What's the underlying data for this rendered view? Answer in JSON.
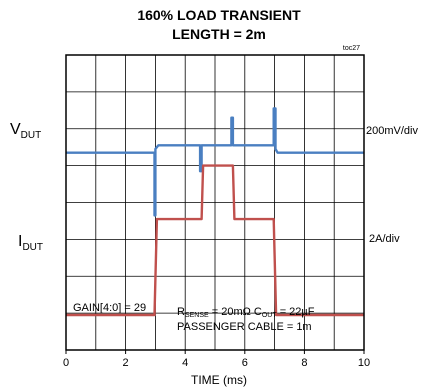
{
  "chart_data": {
    "type": "line",
    "title": "160% LOAD TRANSIENT",
    "subtitle": "LENGTH = 2m",
    "tag": "toc27",
    "xlabel": "TIME (ms)",
    "xlim": [
      0,
      10
    ],
    "x_ticks": [
      "0",
      "2",
      "4",
      "6",
      "8",
      "10"
    ],
    "grid": true,
    "y_divisions": 8,
    "channels": [
      {
        "label_main": "V",
        "label_sub": "DUT",
        "scale": "200mV/div",
        "color": "#4a7fc1",
        "baseline_div": 5.35,
        "x": [
          0,
          2.97,
          2.97,
          3.0,
          3.0,
          3.1,
          3.2,
          4.5,
          4.5,
          4.55,
          4.55,
          5.55,
          5.55,
          5.6,
          5.6,
          6.97,
          6.97,
          7.03,
          7.03,
          7.1,
          10
        ],
        "y_div": [
          5.35,
          5.35,
          3.65,
          3.65,
          5.45,
          5.55,
          5.55,
          5.55,
          4.85,
          4.85,
          5.55,
          5.55,
          6.3,
          6.3,
          5.55,
          5.55,
          6.55,
          6.55,
          5.45,
          5.35,
          5.35
        ]
      },
      {
        "label_main": "I",
        "label_sub": "DUT",
        "scale": "2A/div",
        "color": "#c0504d",
        "baseline_div": 0.95,
        "x": [
          0,
          2.97,
          3.05,
          4.5,
          4.5,
          4.55,
          4.6,
          5.55,
          5.6,
          5.65,
          6.97,
          7.05,
          10
        ],
        "y_div": [
          0.95,
          0.95,
          3.55,
          3.55,
          3.55,
          3.55,
          5.0,
          5.0,
          5.0,
          3.55,
          3.55,
          0.95,
          0.95
        ]
      }
    ],
    "annotations": [
      {
        "text": "GAIN[4:0] = 29"
      },
      {
        "line1_parts": [
          "R",
          "SENSE",
          " = 20mΩ C",
          "OUT",
          " = 22µF"
        ]
      },
      {
        "text": "PASSENGER CABLE = 1m"
      }
    ]
  }
}
